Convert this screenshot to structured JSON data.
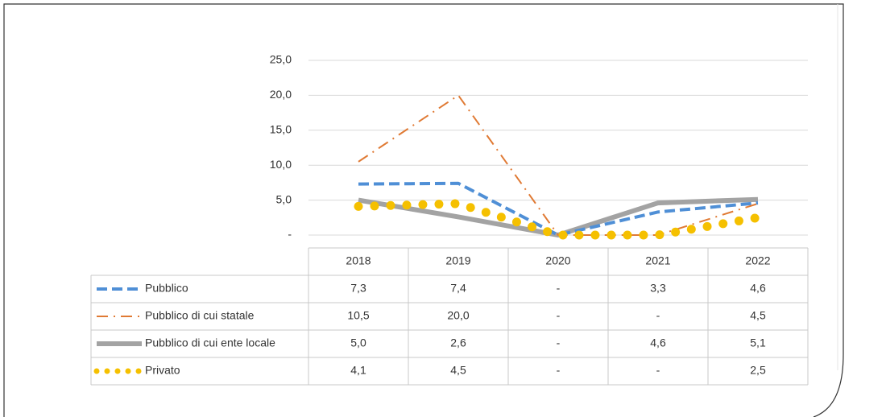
{
  "chart_data": {
    "type": "line",
    "categories": [
      "2018",
      "2019",
      "2020",
      "2021",
      "2022"
    ],
    "series": [
      {
        "name": "Pubblico",
        "color": "#4f8fd6",
        "style": "dashed",
        "values": [
          7.3,
          7.4,
          0,
          3.3,
          4.6
        ],
        "value_labels": [
          "7,3",
          "7,4",
          "-",
          "3,3",
          "4,6"
        ]
      },
      {
        "name": "Pubblico di cui statale",
        "color": "#e07a34",
        "style": "dash-dot",
        "values": [
          10.5,
          20.0,
          0,
          0,
          4.5
        ],
        "value_labels": [
          "10,5",
          "20,0",
          "-",
          "-",
          "4,5"
        ]
      },
      {
        "name": "Pubblico di cui ente locale",
        "color": "#a3a3a3",
        "style": "solid",
        "values": [
          5.0,
          2.6,
          0,
          4.6,
          5.1
        ],
        "value_labels": [
          "5,0",
          "2,6",
          "-",
          "4,6",
          "5,1"
        ]
      },
      {
        "name": "Privato",
        "color": "#f5c000",
        "style": "dotted",
        "values": [
          4.1,
          4.5,
          0,
          0,
          2.5
        ],
        "value_labels": [
          "4,1",
          "4,5",
          "-",
          "-",
          "2,5"
        ]
      }
    ],
    "ylim": [
      0,
      25
    ],
    "yticks": [
      {
        "value": 0,
        "label": "-"
      },
      {
        "value": 5,
        "label": "5,0"
      },
      {
        "value": 10,
        "label": "10,0"
      },
      {
        "value": 15,
        "label": "15,0"
      },
      {
        "value": 20,
        "label": "20,0"
      },
      {
        "value": 25,
        "label": "25,0"
      }
    ],
    "grid": true
  }
}
